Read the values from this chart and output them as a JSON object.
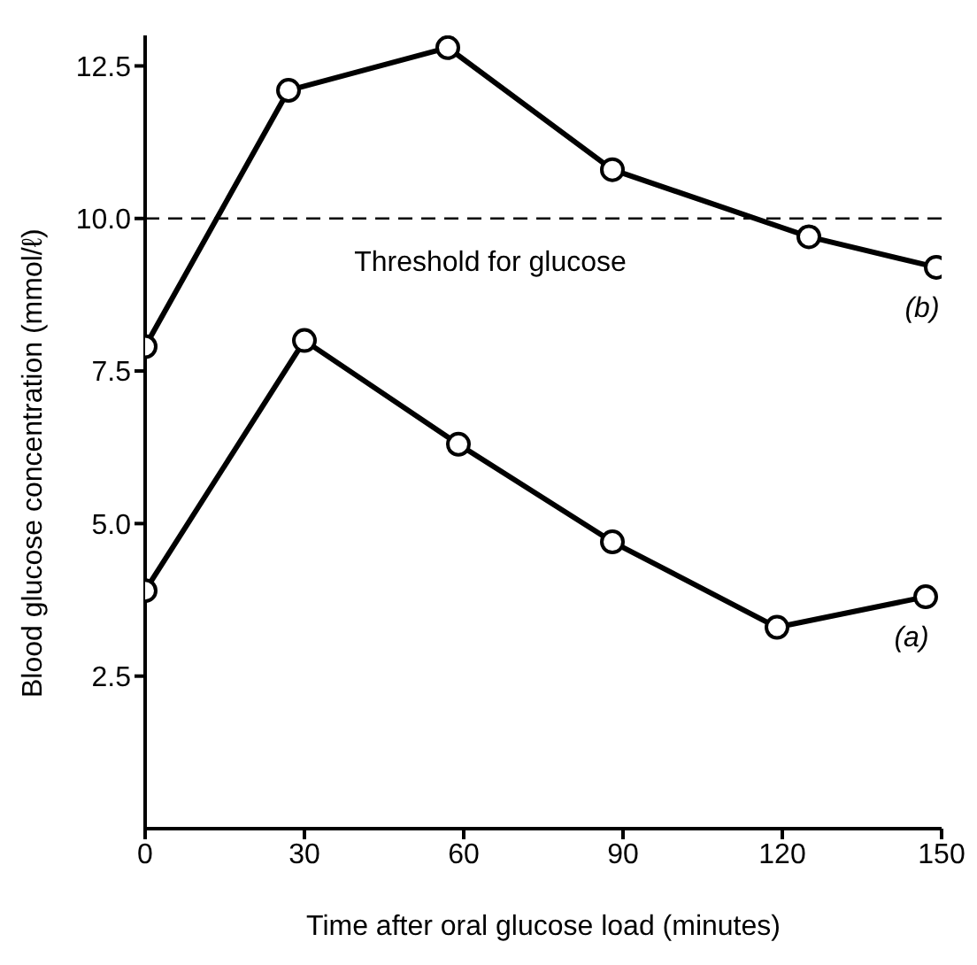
{
  "chart_data": {
    "type": "line",
    "xlabel": "Time after oral glucose load (minutes)",
    "ylabel": "Blood glucose concentration (mmol/ℓ)",
    "xlim": [
      0,
      150
    ],
    "xticks": [
      0,
      30,
      60,
      90,
      120,
      150
    ],
    "ylim": [
      0,
      13
    ],
    "yticks": [
      {
        "value": 2.5,
        "label": "2.5"
      },
      {
        "value": 5,
        "label": "5.0"
      },
      {
        "value": 7.5,
        "label": "7.5"
      },
      {
        "value": 10,
        "label": "10.0"
      },
      {
        "value": 12.5,
        "label": "12.5"
      }
    ],
    "series": [
      {
        "name": "(b)",
        "color": "#000000",
        "x": [
          0,
          27,
          57,
          88,
          125,
          149
        ],
        "values": [
          7.9,
          12.1,
          12.8,
          10.8,
          9.7,
          9.2
        ]
      },
      {
        "name": "(a)",
        "color": "#000000",
        "x": [
          0,
          30,
          59,
          88,
          119,
          147
        ],
        "values": [
          3.9,
          8.0,
          6.3,
          4.7,
          3.3,
          3.8
        ]
      }
    ],
    "ref_lines": [
      {
        "axis": "y",
        "value": 10,
        "label": "Threshold for glucose",
        "color": "#000000",
        "line_style": "dashed"
      }
    ],
    "marker": "circle",
    "grid": false,
    "legend": false
  }
}
